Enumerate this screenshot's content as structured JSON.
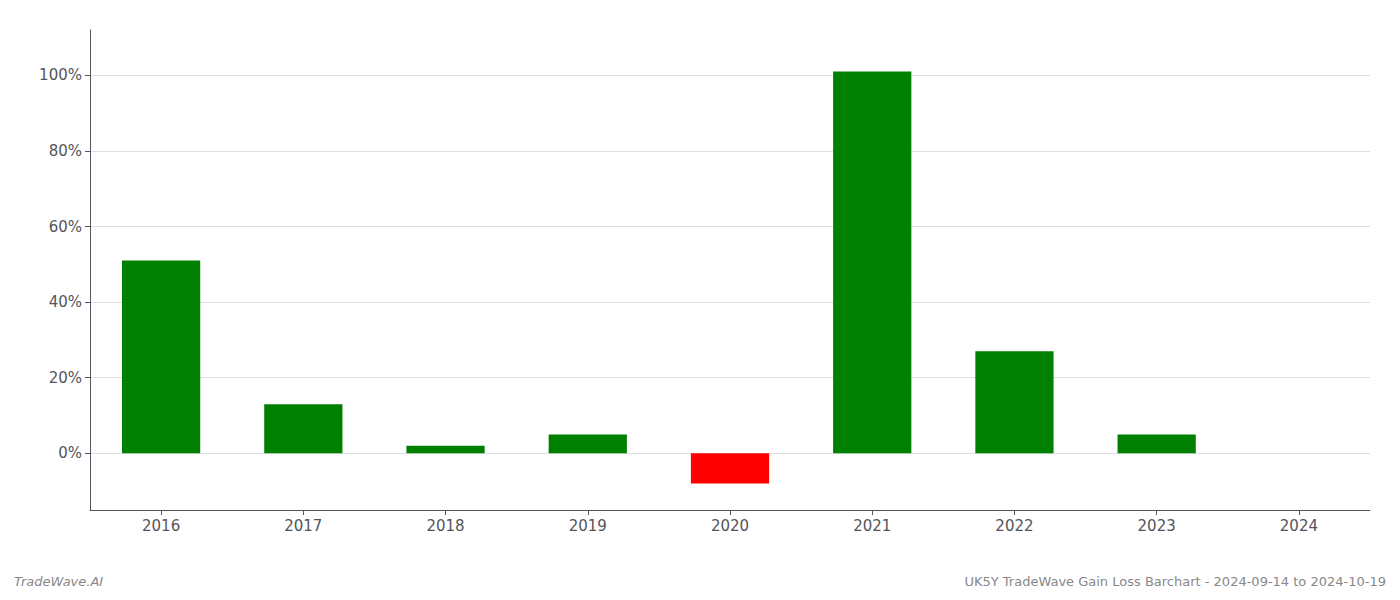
{
  "chart_data": {
    "type": "bar",
    "categories": [
      "2016",
      "2017",
      "2018",
      "2019",
      "2020",
      "2021",
      "2022",
      "2023",
      "2024"
    ],
    "values": [
      51,
      13,
      2,
      5,
      -8,
      101,
      27,
      5,
      0
    ],
    "colors": [
      "#008000",
      "#008000",
      "#008000",
      "#008000",
      "#ff0000",
      "#008000",
      "#008000",
      "#008000",
      "#008000"
    ],
    "ylim": [
      -15,
      112
    ],
    "yticks": [
      {
        "value": 0,
        "label": "0%"
      },
      {
        "value": 20,
        "label": "20%"
      },
      {
        "value": 40,
        "label": "40%"
      },
      {
        "value": 60,
        "label": "60%"
      },
      {
        "value": 80,
        "label": "80%"
      },
      {
        "value": 100,
        "label": "100%"
      }
    ],
    "grid": true,
    "annotations": [
      "TradeWave.AI",
      "UK5Y TradeWave Gain Loss Barchart - 2024-09-14 to 2024-10-19"
    ]
  }
}
